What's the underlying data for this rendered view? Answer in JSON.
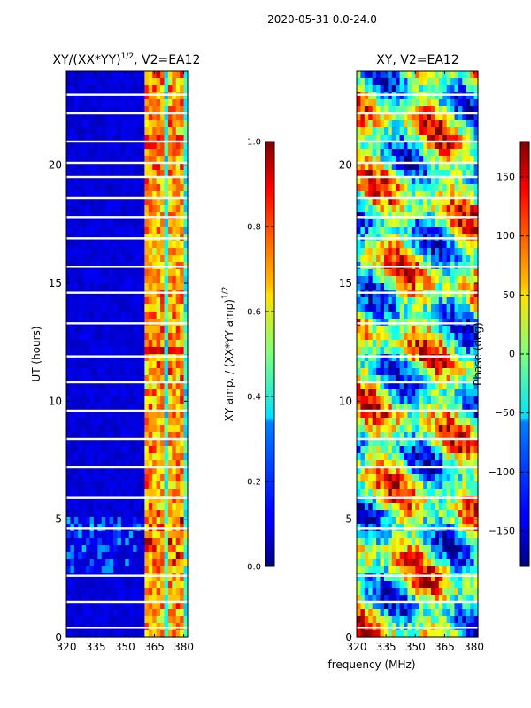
{
  "figure": {
    "suptitle": "2020-05-31 0.0-24.0",
    "shared_xlabel": "frequency (MHz)"
  },
  "chart_data": [
    {
      "type": "heatmap",
      "title_main": "XY/(XX*YY)",
      "title_sup": "1/2",
      "title_rest": ", V2=EA12",
      "xlabel": "",
      "ylabel": "UT (hours)",
      "xlim": [
        320,
        382
      ],
      "ylim": [
        0,
        24
      ],
      "xticks": [
        320,
        335,
        350,
        365,
        380
      ],
      "yticks": [
        0,
        5,
        10,
        15,
        20
      ],
      "colorbar": {
        "label_main": "XY amp. / (XX*YY amp)",
        "label_sup": "1/2",
        "range": [
          0.0,
          1.0
        ],
        "ticks": [
          "0.0",
          "0.2",
          "0.4",
          "0.6",
          "0.8",
          "1.0"
        ]
      },
      "band_features": {
        "strong_channels_mhz": [
          362,
          366,
          369,
          373,
          376,
          379
        ],
        "flagged_hours": [
          0.4,
          1.5,
          2.6,
          4.6,
          5.9,
          7.2,
          8.4,
          9.6,
          10.8,
          11.9,
          13.3,
          14.6,
          15.7,
          16.9,
          17.8,
          18.6,
          19.5,
          20.1,
          21.0,
          22.2,
          23.0
        ]
      }
    },
    {
      "type": "heatmap",
      "title_main": "XY, V2=EA12",
      "title_sup": "",
      "title_rest": "",
      "xlabel": "frequency (MHz)",
      "ylabel": "",
      "xlim": [
        320,
        382
      ],
      "ylim": [
        0,
        24
      ],
      "xticks": [
        320,
        335,
        350,
        365,
        380
      ],
      "yticks": [
        0,
        5,
        10,
        15,
        20
      ],
      "colorbar": {
        "label_main": "Phase (deg)",
        "label_sup": "",
        "range": [
          -180,
          180
        ],
        "ticks": [
          "−150",
          "−100",
          "−50",
          "0",
          "50",
          "100",
          "150"
        ]
      },
      "band_features": {
        "flagged_hours": [
          0.4,
          1.5,
          2.6,
          4.6,
          5.9,
          7.2,
          8.4,
          9.6,
          10.8,
          11.9,
          13.3,
          14.6,
          15.7,
          16.9,
          17.8,
          18.6,
          19.5,
          20.1,
          21.0,
          22.2,
          23.0
        ]
      }
    }
  ]
}
